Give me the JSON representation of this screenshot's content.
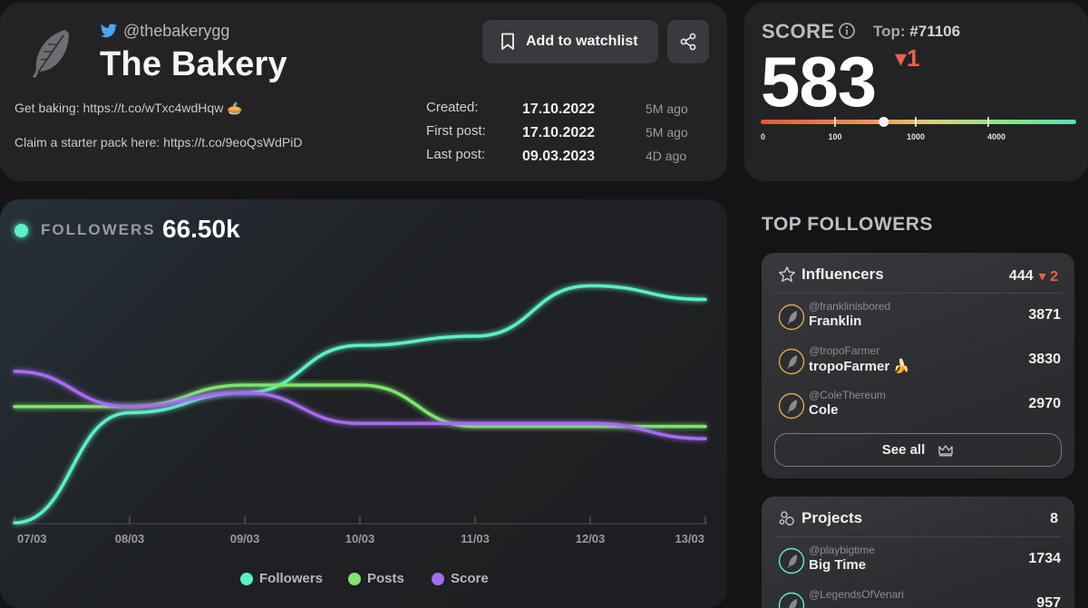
{
  "profile": {
    "handle": "@thebakerygg",
    "name": "The Bakery",
    "bio_line1": "Get baking: https://t.co/wTxc4wdHqw 🥧",
    "bio_line2": "Claim a starter pack here: https://t.co/9eoQsWdPiD",
    "watchlist_label": "Add to watchlist",
    "meta": [
      {
        "label": "Created:",
        "date": "17.10.2022",
        "ago": "5M ago"
      },
      {
        "label": "First post:",
        "date": "17.10.2022",
        "ago": "5M ago"
      },
      {
        "label": "Last post:",
        "date": "09.03.2023",
        "ago": "4D ago"
      }
    ]
  },
  "score": {
    "label": "SCORE",
    "top_prefix": "Top:",
    "top_rank": "#71106",
    "value": "583",
    "change": "▾1",
    "gauge_ticks": [
      "0",
      "100",
      "1000",
      "4000"
    ],
    "gauge_marker_fraction": 0.39
  },
  "chart": {
    "label": "FOLLOWERS",
    "value": "66.50k",
    "legend": {
      "followers": "Followers",
      "posts": "Posts",
      "score": "Score"
    }
  },
  "chart_data": {
    "type": "line",
    "x": [
      "07/03",
      "08/03",
      "09/03",
      "10/03",
      "11/03",
      "12/03",
      "13/03"
    ],
    "series": [
      {
        "name": "Followers",
        "color": "#5bf0c8",
        "values": [
          0.0,
          0.72,
          0.85,
          1.16,
          1.22,
          1.55,
          1.46
        ]
      },
      {
        "name": "Posts",
        "color": "#7ee56e",
        "values": [
          0.76,
          0.76,
          0.9,
          0.9,
          0.63,
          0.63,
          0.63
        ]
      },
      {
        "name": "Score",
        "color": "#a66cf0",
        "values": [
          0.99,
          0.76,
          0.85,
          0.65,
          0.65,
          0.65,
          0.55
        ]
      }
    ],
    "ylim": [
      0,
      1.7
    ],
    "grid": false,
    "legend_position": "bottom"
  },
  "top_followers": {
    "heading": "TOP FOLLOWERS",
    "influencers": {
      "title": "Influencers",
      "count": "444",
      "change": "▾ 2",
      "people": [
        {
          "handle": "@franklinisbored",
          "name": "Franklin",
          "score": "3871"
        },
        {
          "handle": "@tropoFarmer",
          "name": "tropoFarmer 🍌",
          "score": "3830"
        },
        {
          "handle": "@ColeThereum",
          "name": "Cole",
          "score": "2970"
        }
      ],
      "see_all": "See all"
    },
    "projects": {
      "title": "Projects",
      "count": "8",
      "people": [
        {
          "handle": "@playbigtime",
          "name": "Big Time",
          "score": "1734"
        },
        {
          "handle": "@LegendsOfVenari",
          "name": "",
          "score": "957"
        }
      ]
    }
  },
  "colors": {
    "accent_green": "#5bf0c8",
    "posts": "#7ee56e",
    "score": "#a66cf0",
    "down": "#ee5f4b"
  }
}
